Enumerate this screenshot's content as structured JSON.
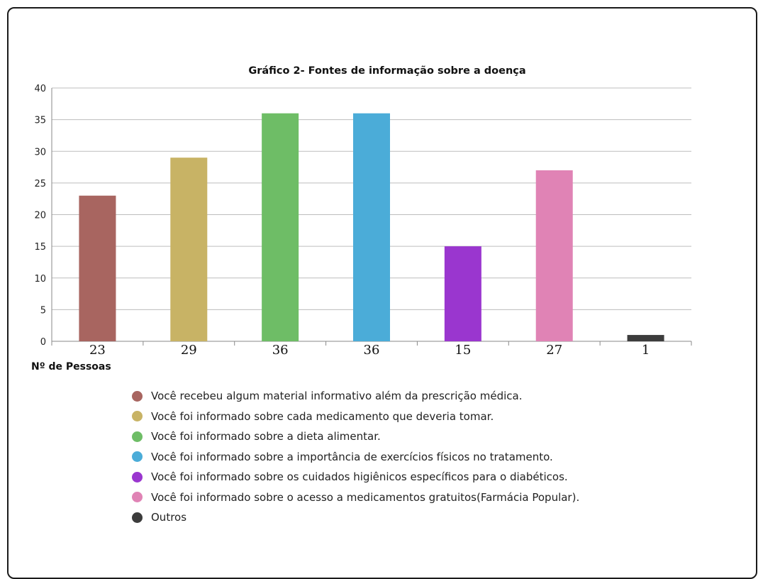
{
  "chart_data": {
    "type": "bar",
    "title": "Gráfico 2- Fontes de informação sobre a doença",
    "xlabel": "Nº de Pessoas",
    "ylabel": "",
    "ylim": [
      0,
      40
    ],
    "yticks": [
      0,
      5,
      10,
      15,
      20,
      25,
      30,
      35,
      40
    ],
    "grid": true,
    "legend_placement": "bottom",
    "categories": [
      "23",
      "29",
      "36",
      "36",
      "15",
      "27",
      "1"
    ],
    "values": [
      23,
      29,
      36,
      36,
      15,
      27,
      1
    ],
    "colors": [
      "#a86560",
      "#c8b365",
      "#6ebd66",
      "#4bacd8",
      "#9a36cf",
      "#e083b5",
      "#3c3c3c"
    ],
    "legend": [
      "Você recebeu algum material informativo além da prescrição médica.",
      "Você foi informado sobre cada medicamento que deveria tomar.",
      "Você foi informado sobre a dieta alimentar.",
      "Você foi informado sobre a importância de exercícios físicos no tratamento.",
      "Você foi informado sobre os cuidados higiênicos específicos para o diabéticos.",
      "Você foi informado sobre o acesso a medicamentos gratuitos(Farmácia Popular).",
      "Outros"
    ]
  }
}
